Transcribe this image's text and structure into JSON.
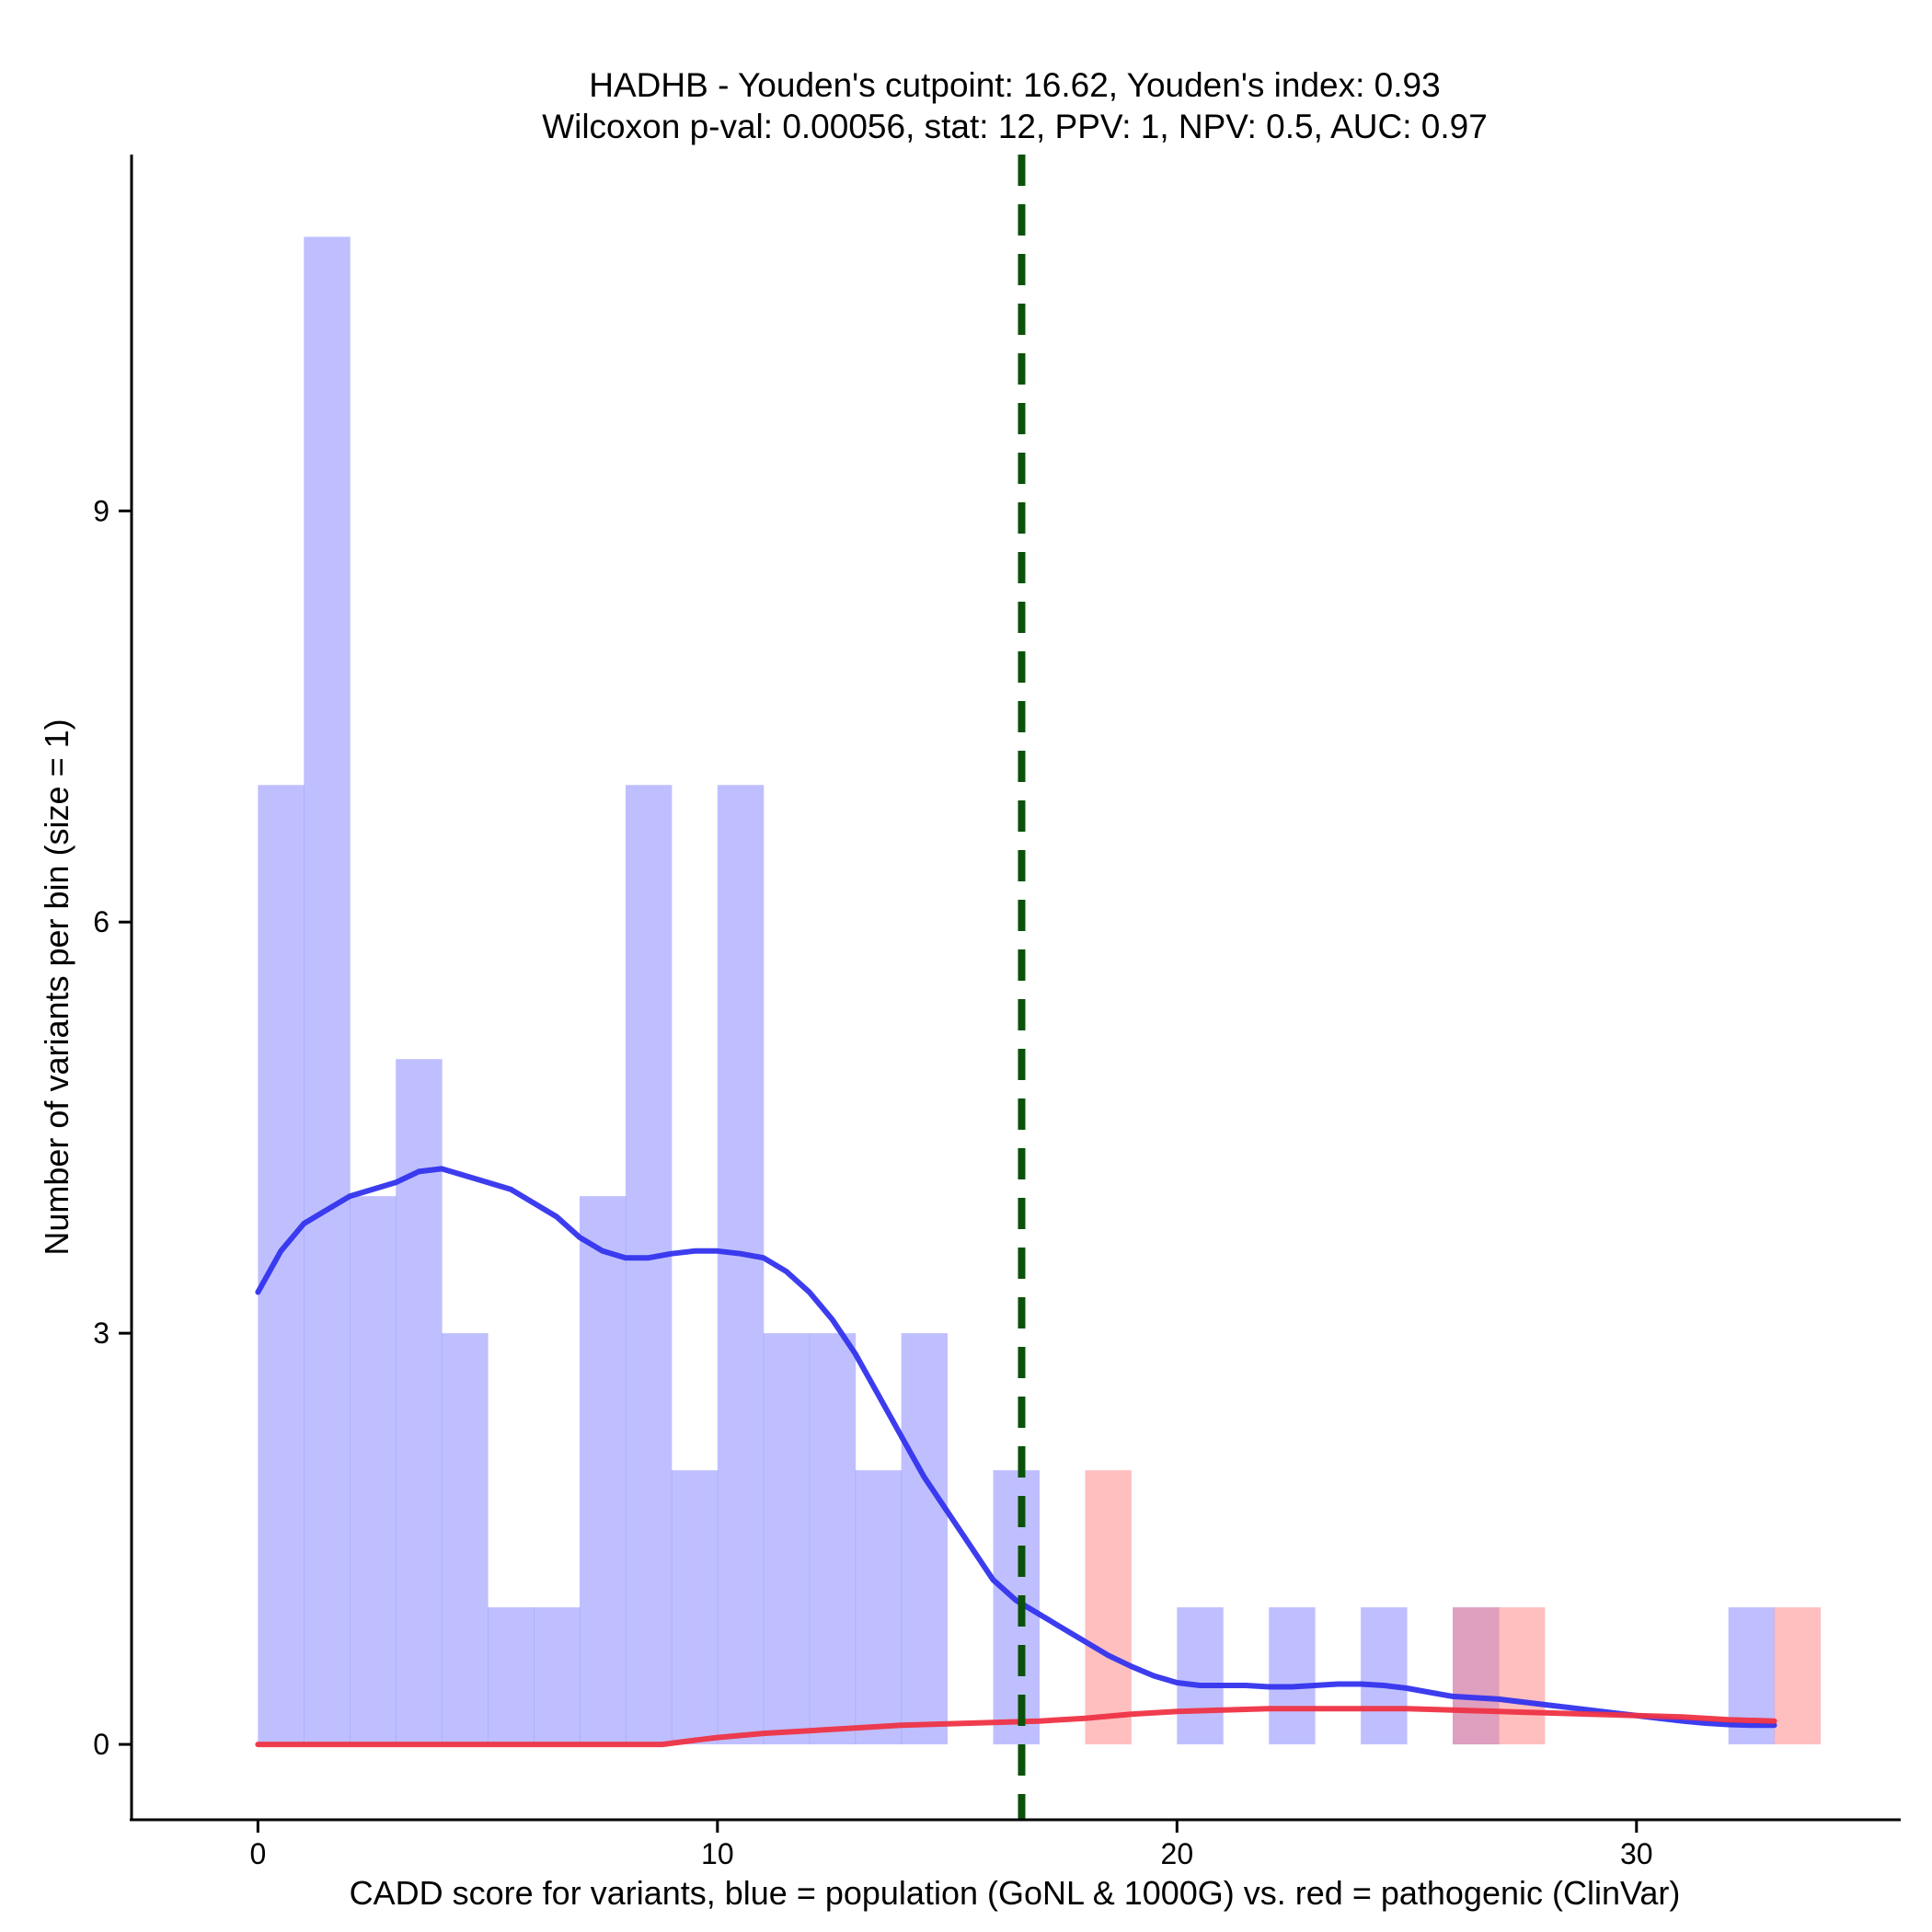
{
  "chart_data": {
    "type": "bar",
    "title_line1": "HADHB - Youden's cutpoint: 16.62, Youden's index: 0.93",
    "title_line2": "Wilcoxon p-val: 0.00056, stat: 12, PPV: 1, NPV: 0.5, AUC: 0.97",
    "xlabel": "CADD score for variants, blue = population (GoNL & 1000G) vs. red = pathogenic (ClinVar)",
    "ylabel": "Number of variants per bin (size = 1)",
    "xlim": [
      -2.75,
      35.75
    ],
    "ylim": [
      -0.55,
      11.6
    ],
    "x_ticks": [
      0,
      10,
      20,
      30
    ],
    "y_ticks": [
      0,
      3,
      6,
      9
    ],
    "cutpoint": 16.62,
    "colors": {
      "population": "#8080ff",
      "pathogenic": "#ff8080",
      "population_line": "#3333ee",
      "pathogenic_line": "#ee3344",
      "cutpoint": "#0a520a"
    },
    "series": [
      {
        "name": "population",
        "bins": [
          {
            "x0": 0,
            "x1": 1,
            "count": 7
          },
          {
            "x0": 1,
            "x1": 2,
            "count": 11
          },
          {
            "x0": 2,
            "x1": 3,
            "count": 4
          },
          {
            "x0": 3,
            "x1": 4,
            "count": 5
          },
          {
            "x0": 4,
            "x1": 5,
            "count": 3
          },
          {
            "x0": 5,
            "x1": 6,
            "count": 1
          },
          {
            "x0": 6,
            "x1": 7,
            "count": 1
          },
          {
            "x0": 7,
            "x1": 8,
            "count": 4
          },
          {
            "x0": 8,
            "x1": 9,
            "count": 7
          },
          {
            "x0": 9,
            "x1": 10,
            "count": 2
          },
          {
            "x0": 10,
            "x1": 11,
            "count": 7
          },
          {
            "x0": 11,
            "x1": 12,
            "count": 3
          },
          {
            "x0": 12,
            "x1": 13,
            "count": 3
          },
          {
            "x0": 13,
            "x1": 14,
            "count": 2
          },
          {
            "x0": 14,
            "x1": 15,
            "count": 3
          },
          {
            "x0": 16,
            "x1": 17,
            "count": 2
          },
          {
            "x0": 20,
            "x1": 21,
            "count": 1
          },
          {
            "x0": 22,
            "x1": 23,
            "count": 1
          },
          {
            "x0": 24,
            "x1": 25,
            "count": 1
          },
          {
            "x0": 26,
            "x1": 27,
            "count": 1
          },
          {
            "x0": 32,
            "x1": 33,
            "count": 1
          }
        ],
        "density_line": [
          [
            0,
            3.3
          ],
          [
            0.5,
            3.6
          ],
          [
            1,
            3.8
          ],
          [
            1.5,
            3.9
          ],
          [
            2,
            4.0
          ],
          [
            2.5,
            4.05
          ],
          [
            3,
            4.1
          ],
          [
            3.5,
            4.18
          ],
          [
            4,
            4.2
          ],
          [
            4.5,
            4.15
          ],
          [
            5,
            4.1
          ],
          [
            5.5,
            4.05
          ],
          [
            6,
            3.95
          ],
          [
            6.5,
            3.85
          ],
          [
            7,
            3.7
          ],
          [
            7.5,
            3.6
          ],
          [
            8,
            3.55
          ],
          [
            8.5,
            3.55
          ],
          [
            9,
            3.58
          ],
          [
            9.5,
            3.6
          ],
          [
            10,
            3.6
          ],
          [
            10.5,
            3.58
          ],
          [
            11,
            3.55
          ],
          [
            11.5,
            3.45
          ],
          [
            12,
            3.3
          ],
          [
            12.5,
            3.1
          ],
          [
            13,
            2.85
          ],
          [
            13.5,
            2.55
          ],
          [
            14,
            2.25
          ],
          [
            14.5,
            1.95
          ],
          [
            15,
            1.7
          ],
          [
            15.5,
            1.45
          ],
          [
            16,
            1.2
          ],
          [
            16.5,
            1.05
          ],
          [
            17,
            0.95
          ],
          [
            17.5,
            0.85
          ],
          [
            18,
            0.75
          ],
          [
            18.5,
            0.65
          ],
          [
            19,
            0.57
          ],
          [
            19.5,
            0.5
          ],
          [
            20,
            0.45
          ],
          [
            20.5,
            0.43
          ],
          [
            21,
            0.43
          ],
          [
            21.5,
            0.43
          ],
          [
            22,
            0.42
          ],
          [
            22.5,
            0.42
          ],
          [
            23,
            0.43
          ],
          [
            23.5,
            0.44
          ],
          [
            24,
            0.44
          ],
          [
            24.5,
            0.43
          ],
          [
            25,
            0.41
          ],
          [
            25.5,
            0.38
          ],
          [
            26,
            0.35
          ],
          [
            26.5,
            0.34
          ],
          [
            27,
            0.33
          ],
          [
            27.5,
            0.31
          ],
          [
            28,
            0.29
          ],
          [
            28.5,
            0.27
          ],
          [
            29,
            0.25
          ],
          [
            29.5,
            0.23
          ],
          [
            30,
            0.21
          ],
          [
            30.5,
            0.19
          ],
          [
            31,
            0.17
          ],
          [
            31.5,
            0.155
          ],
          [
            32,
            0.145
          ],
          [
            32.5,
            0.14
          ],
          [
            33,
            0.14
          ]
        ]
      },
      {
        "name": "pathogenic",
        "bins": [
          {
            "x0": 18,
            "x1": 19,
            "count": 2
          },
          {
            "x0": 26,
            "x1": 27,
            "count": 1
          },
          {
            "x0": 27,
            "x1": 28,
            "count": 1
          },
          {
            "x0": 33,
            "x1": 34,
            "count": 1
          }
        ],
        "density_line": [
          [
            0,
            0.0
          ],
          [
            2,
            0.0
          ],
          [
            4,
            0.0
          ],
          [
            6,
            0.0
          ],
          [
            8,
            0.0
          ],
          [
            8.8,
            0.0
          ],
          [
            9.5,
            0.03
          ],
          [
            10,
            0.05
          ],
          [
            11,
            0.08
          ],
          [
            12,
            0.1
          ],
          [
            13,
            0.12
          ],
          [
            14,
            0.14
          ],
          [
            15,
            0.15
          ],
          [
            16,
            0.16
          ],
          [
            17,
            0.17
          ],
          [
            18,
            0.19
          ],
          [
            19,
            0.22
          ],
          [
            20,
            0.24
          ],
          [
            21,
            0.25
          ],
          [
            22,
            0.26
          ],
          [
            23,
            0.26
          ],
          [
            24,
            0.26
          ],
          [
            25,
            0.26
          ],
          [
            26,
            0.25
          ],
          [
            27,
            0.24
          ],
          [
            28,
            0.23
          ],
          [
            29,
            0.22
          ],
          [
            30,
            0.21
          ],
          [
            31,
            0.2
          ],
          [
            32,
            0.18
          ],
          [
            33,
            0.17
          ]
        ]
      }
    ]
  }
}
